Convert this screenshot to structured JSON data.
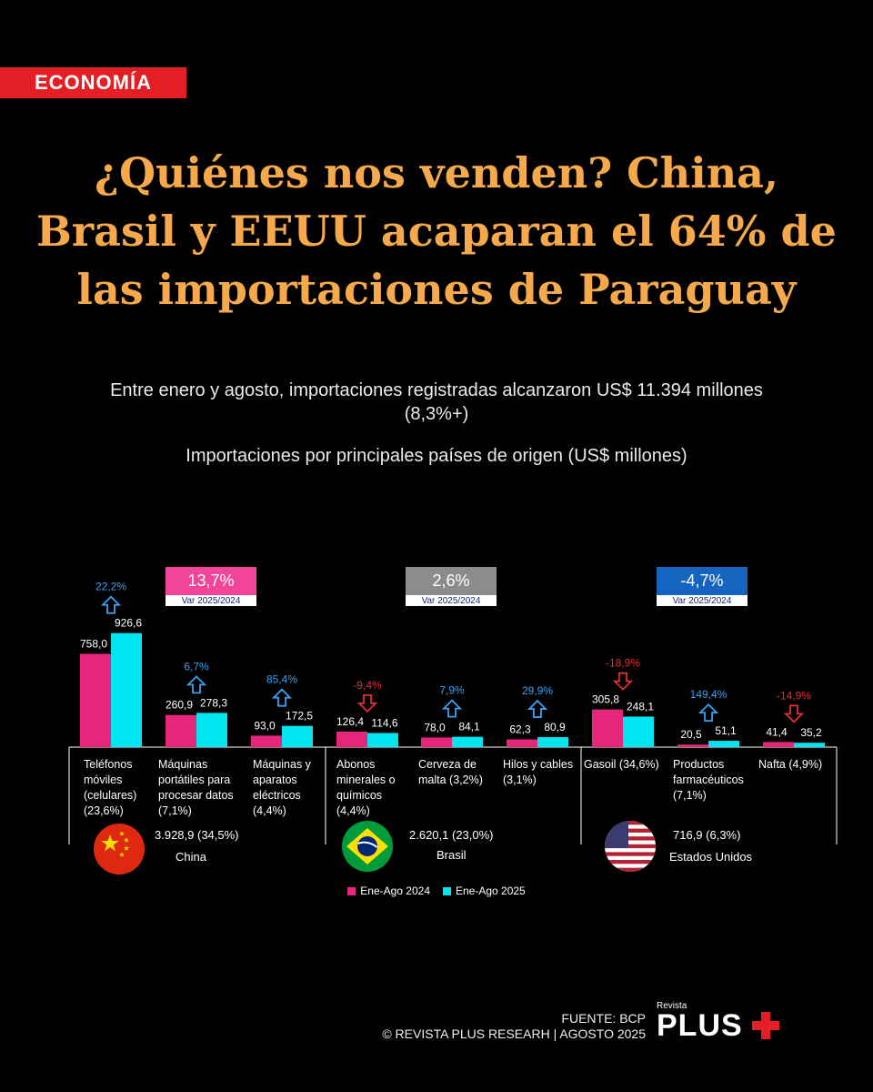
{
  "section_tag": "ECONOMÍA",
  "headline": "¿Quiénes nos venden? China, Brasil y EEUU acaparan el 64% de las importaciones de Paraguay",
  "subtitle": "Entre enero y agosto, importaciones registradas alcanzaron US$ 11.394 millones (8,3%+)",
  "subtitle2": "Importaciones por principales países de origen (US$ millones)",
  "colors": {
    "series_2024": "#e6267a",
    "series_2025": "#00e5ef",
    "up_arrow": "#3aa0f0",
    "down_arrow": "#e33030",
    "accent_title": "#f5a94a",
    "tag_bg": "#e31e24"
  },
  "countries": [
    {
      "name": "China",
      "total": "3.928,9 (34,5%)",
      "variation": "13,7%",
      "variation_caption": "Var 2025/2024",
      "box_color": "#f2459a",
      "flag_icon": "china-flag-icon"
    },
    {
      "name": "Brasil",
      "total": "2.620,1 (23,0%)",
      "variation": "2,6%",
      "variation_caption": "Var 2025/2024",
      "box_color": "#8c8c8c",
      "flag_icon": "brazil-flag-icon"
    },
    {
      "name": "Estados Unidos",
      "total": "716,9 (6,3%)",
      "variation": "-4,7%",
      "variation_caption": "Var 2025/2024",
      "box_color": "#1565c0",
      "flag_icon": "usa-flag-icon"
    }
  ],
  "chart_data": {
    "type": "bar",
    "series": [
      {
        "name": "Ene-Ago 2024",
        "values": [
          758.0,
          260.9,
          93.0,
          126.4,
          78.0,
          62.3,
          305.8,
          20.5,
          41.4
        ]
      },
      {
        "name": "Ene-Ago 2025",
        "values": [
          926.6,
          278.3,
          172.5,
          114.6,
          84.1,
          80.9,
          248.1,
          51.1,
          35.2
        ]
      }
    ],
    "categories": [
      "Teléfonos móviles (celulares) (23,6%)",
      "Máquinas portátiles para procesar datos (7,1%)",
      "Máquinas y aparatos eléctricos (4,4%)",
      "Abonos minerales o químicos (4,4%)",
      "Cerveza de malta (3,2%)",
      "Hilos y cables (3,1%)",
      "Gasoil (34,6%)",
      "Productos farmacéuticos (7,1%)",
      "Nafta (4,9%)"
    ],
    "category_lines": [
      [
        "Teléfonos",
        "móviles",
        "(celulares)",
        "(23,6%)"
      ],
      [
        "Máquinas",
        "portátiles para",
        "procesar datos",
        "(7,1%)"
      ],
      [
        "Máquinas y",
        "aparatos",
        "eléctricos",
        "(4,4%)"
      ],
      [
        "Abonos",
        "minerales o",
        "químicos",
        "(4,4%)"
      ],
      [
        "Cerveza de",
        "malta (3,2%)"
      ],
      [
        "Hilos y cables",
        "(3,1%)"
      ],
      [
        "Gasoil (34,6%)"
      ],
      [
        "Productos",
        "farmacéuticos",
        "(7,1%)"
      ],
      [
        "Nafta (4,9%)"
      ]
    ],
    "labels_2024": [
      "758,0",
      "260,9",
      "93,0",
      "126,4",
      "78,0",
      "62,3",
      "305,8",
      "20,5",
      "41,4"
    ],
    "labels_2025": [
      "926,6",
      "278,3",
      "172,5",
      "114,6",
      "84,1",
      "80,9",
      "248,1",
      "51,1",
      "35,2"
    ],
    "changes": [
      "22,2%",
      "6,7%",
      "85,4%",
      "-9,4%",
      "7,9%",
      "29,9%",
      "-18,9%",
      "149,4%",
      "-14,9%"
    ],
    "directions": [
      "up",
      "up",
      "up",
      "down",
      "up",
      "up",
      "down",
      "up",
      "down"
    ],
    "ylim": [
      0,
      1000
    ],
    "legend": [
      "Ene-Ago 2024",
      "Ene-Ago 2025"
    ]
  },
  "footer": {
    "source": "FUENTE: BCP",
    "credit": "© REVISTA PLUS RESEARH | AGOSTO 2025"
  },
  "logo": {
    "small": "Revista",
    "big": "PLUS"
  }
}
